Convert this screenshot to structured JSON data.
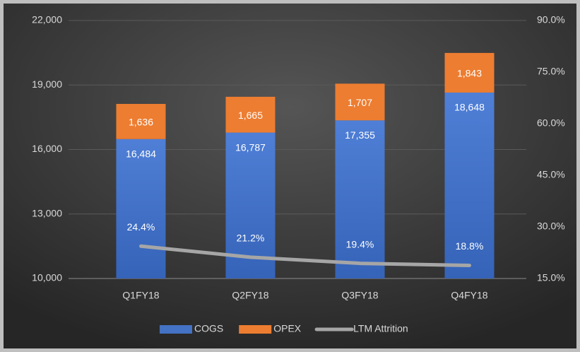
{
  "chart_data": {
    "type": "bar",
    "categories": [
      "Q1FY18",
      "Q2FY18",
      "Q3FY18",
      "Q4FY18"
    ],
    "series": [
      {
        "name": "COGS",
        "color": "#4472c4",
        "values": [
          16484,
          16787,
          17355,
          18648
        ],
        "value_labels": [
          "16,484",
          "16,787",
          "17,355",
          "18,648"
        ]
      },
      {
        "name": "OPEX",
        "color": "#ed7d31",
        "values": [
          1636,
          1665,
          1707,
          1843
        ],
        "value_labels": [
          "1,636",
          "1,665",
          "1,707",
          "1,843"
        ]
      },
      {
        "name": "LTM Attrition",
        "type": "line",
        "axis": "y2",
        "color": "#a6a6a6",
        "values": [
          24.4,
          21.2,
          19.4,
          18.8
        ],
        "value_labels": [
          "24.4%",
          "21.2%",
          "19.4%",
          "18.8%"
        ]
      }
    ],
    "stacked": true,
    "ylim": [
      10000,
      22000
    ],
    "yticks": [
      {
        "value": 10000,
        "label": "10,000"
      },
      {
        "value": 13000,
        "label": "13,000"
      },
      {
        "value": 16000,
        "label": "16,000"
      },
      {
        "value": 19000,
        "label": "19,000"
      },
      {
        "value": 22000,
        "label": "22,000"
      }
    ],
    "y2lim": [
      15,
      90
    ],
    "y2ticks": [
      {
        "value": 15,
        "label": "15.0%"
      },
      {
        "value": 30,
        "label": "30.0%"
      },
      {
        "value": 45,
        "label": "45.0%"
      },
      {
        "value": 60,
        "label": "60.0%"
      },
      {
        "value": 75,
        "label": "75.0%"
      },
      {
        "value": 90,
        "label": "90.0%"
      }
    ],
    "grid": true,
    "legend": "bottom"
  }
}
